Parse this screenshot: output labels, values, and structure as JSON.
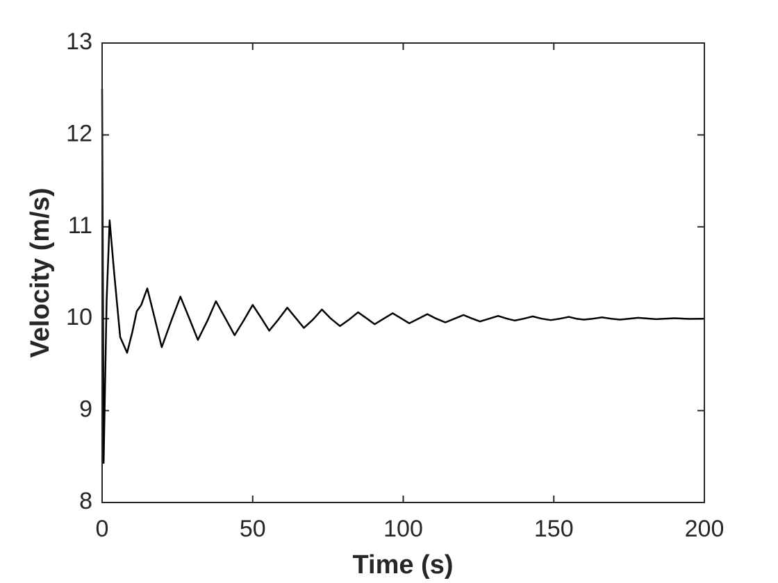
{
  "chart_data": {
    "type": "line",
    "xlabel": "Time (s)",
    "ylabel": "Velocity (m/s)",
    "xlim": [
      0,
      200
    ],
    "ylim": [
      8,
      13
    ],
    "xticks": [
      0,
      50,
      100,
      150,
      200
    ],
    "yticks": [
      8,
      9,
      10,
      11,
      12,
      13
    ],
    "grid": false,
    "series": [
      {
        "name": "Velocity",
        "color": "#000000",
        "x": [
          0,
          0.5,
          1.5,
          2.5,
          4,
          6,
          8.3,
          10,
          11.5,
          13,
          15,
          17.5,
          19.8,
          23,
          26,
          29,
          31.8,
          35,
          37.8,
          41,
          44,
          47,
          50,
          53,
          55.5,
          58.5,
          61.5,
          64.5,
          67,
          70,
          73,
          76,
          79,
          82,
          85,
          88,
          90.5,
          93.5,
          96.5,
          99.5,
          102,
          105,
          108,
          111,
          114,
          117,
          120,
          123,
          125.5,
          128.5,
          131.5,
          134.5,
          137,
          140,
          143,
          146,
          149,
          152,
          155,
          157.5,
          160,
          163,
          166,
          169,
          172,
          175,
          178,
          184,
          190,
          195,
          200
        ],
        "values": [
          12.5,
          8.43,
          10.2,
          11.07,
          10.5,
          9.8,
          9.63,
          9.85,
          10.08,
          10.15,
          10.33,
          10.0,
          9.69,
          9.98,
          10.24,
          10.0,
          9.77,
          9.98,
          10.19,
          10.0,
          9.82,
          9.98,
          10.15,
          10.0,
          9.87,
          9.99,
          10.12,
          10.0,
          9.9,
          9.99,
          10.1,
          10.0,
          9.92,
          9.99,
          10.07,
          10.0,
          9.94,
          10.0,
          10.06,
          10.0,
          9.95,
          10.0,
          10.05,
          10.0,
          9.96,
          10.0,
          10.04,
          10.0,
          9.97,
          10.0,
          10.03,
          10.0,
          9.98,
          10.0,
          10.025,
          10.0,
          9.985,
          10.0,
          10.02,
          10.0,
          9.99,
          10.0,
          10.015,
          10.0,
          9.99,
          10.0,
          10.01,
          9.995,
          10.005,
          9.998,
          10.0
        ]
      }
    ]
  }
}
